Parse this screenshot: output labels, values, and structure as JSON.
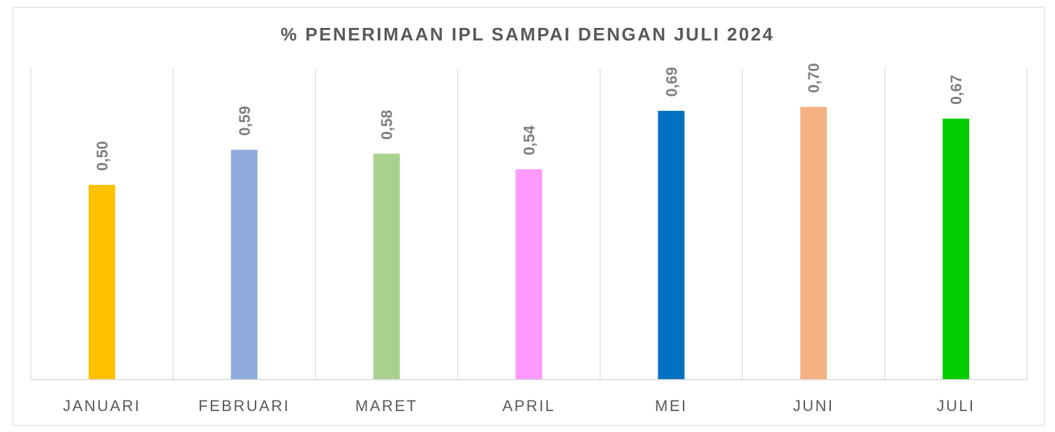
{
  "chart_data": {
    "type": "bar",
    "title": "% PENERIMAAN IPL SAMPAI DENGAN JULI 2024",
    "xlabel": "",
    "ylabel": "",
    "ylim": [
      0,
      0.8
    ],
    "grid": "vertical separators",
    "categories": [
      "JANUARI",
      "FEBRUARI",
      "MARET",
      "APRIL",
      "MEI",
      "JUNI",
      "JULI"
    ],
    "values": [
      0.5,
      0.59,
      0.58,
      0.54,
      0.69,
      0.7,
      0.67
    ],
    "value_labels": [
      "0,50",
      "0,59",
      "0,58",
      "0,54",
      "0,69",
      "0,70",
      "0,67"
    ],
    "colors": [
      "#FFC000",
      "#8FAADC",
      "#A9D18E",
      "#FF99FF",
      "#0070C0",
      "#F4B183",
      "#00CC00"
    ]
  }
}
